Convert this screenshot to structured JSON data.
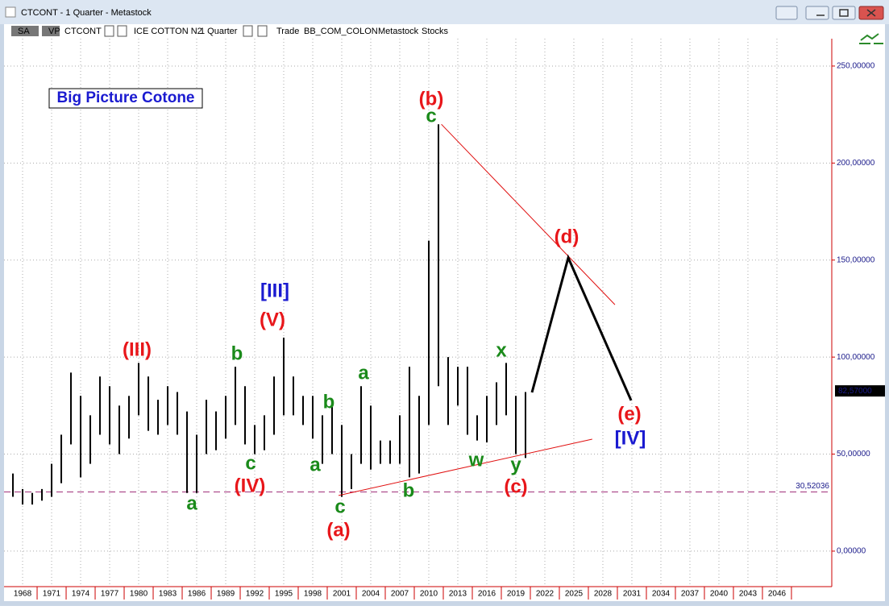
{
  "window": {
    "title": "CTCONT - 1 Quarter - Metastock",
    "toolbar": [
      "SA",
      "VP",
      "CTCONT",
      "ICE COTTON N2",
      "1 Quarter",
      "Trade",
      "BB_COM_COLON",
      "Metastock",
      "Stocks"
    ]
  },
  "chart_data": {
    "type": "range-bar",
    "x": [
      1967,
      1968,
      1969,
      1970,
      1971,
      1972,
      1973,
      1974,
      1975,
      1976,
      1977,
      1978,
      1979,
      1980,
      1981,
      1982,
      1983,
      1984,
      1985,
      1986,
      1987,
      1988,
      1989,
      1990,
      1991,
      1992,
      1993,
      1994,
      1995,
      1996,
      1997,
      1998,
      1999,
      2000,
      2001,
      2002,
      2003,
      2004,
      2005,
      2006,
      2007,
      2008,
      2009,
      2010,
      2011,
      2012,
      2013,
      2014,
      2015,
      2016,
      2017,
      2018,
      2019,
      2020
    ],
    "low": [
      28,
      24,
      24,
      26,
      28,
      35,
      55,
      38,
      45,
      60,
      55,
      50,
      58,
      70,
      62,
      60,
      65,
      60,
      30,
      30,
      50,
      52,
      58,
      65,
      55,
      50,
      52,
      60,
      70,
      70,
      65,
      58,
      45,
      50,
      28,
      32,
      45,
      42,
      45,
      45,
      45,
      38,
      40,
      65,
      85,
      65,
      75,
      60,
      57,
      56,
      65,
      70,
      50,
      48
    ],
    "high": [
      40,
      32,
      30,
      32,
      45,
      60,
      92,
      80,
      70,
      90,
      85,
      75,
      80,
      97,
      90,
      78,
      85,
      82,
      72,
      60,
      78,
      72,
      80,
      95,
      85,
      65,
      70,
      90,
      110,
      90,
      80,
      80,
      70,
      75,
      65,
      50,
      85,
      75,
      57,
      57,
      70,
      95,
      80,
      160,
      220,
      100,
      95,
      95,
      70,
      80,
      87,
      97,
      80,
      82
    ],
    "color": "#000000",
    "xlim": [
      1966.08,
      2051.67
    ],
    "xticks": [
      1968,
      1971,
      1974,
      1977,
      1980,
      1983,
      1986,
      1989,
      1992,
      1995,
      1998,
      2001,
      2004,
      2007,
      2010,
      2013,
      2016,
      2019,
      2022,
      2025,
      2028,
      2031,
      2034,
      2037,
      2040,
      2043,
      2046
    ],
    "ylim": [
      -18.3,
      264.1
    ],
    "yticks": [
      {
        "value": 0,
        "label": "0,00000"
      },
      {
        "value": 50,
        "label": "50,00000"
      },
      {
        "value": 100,
        "label": "100,00000"
      },
      {
        "value": 150,
        "label": "150,00000"
      },
      {
        "value": 200,
        "label": "200,00000"
      },
      {
        "value": 250,
        "label": "250,00000"
      }
    ],
    "grid": true,
    "hline": {
      "value": 30.52036,
      "label": "30,52036",
      "color": "#a0307a"
    },
    "last_price": {
      "value": 82.57,
      "label": "82,57000"
    },
    "lines": [
      {
        "color": "#e01010",
        "x": [
          2011.3,
          2029.25
        ],
        "y": [
          220,
          127
        ]
      },
      {
        "color": "#e01010",
        "x": [
          2000.67,
          2026.9
        ],
        "y": [
          28.7,
          57.7
        ]
      },
      {
        "color": "#000000",
        "x": [
          2020.67,
          2024.42,
          2030.92
        ],
        "y": [
          81.8,
          151.2,
          77.7
        ]
      }
    ],
    "title_box": {
      "text": "Big Picture Cotone",
      "color": "#1a1ad0"
    },
    "annotations": [
      {
        "text": "(b)",
        "color": "#e8161a"
      },
      {
        "text": "c",
        "color": "#1a8a1a"
      },
      {
        "text": "(d)",
        "color": "#e8161a"
      },
      {
        "text": "[III]",
        "color": "#1a1ad0"
      },
      {
        "text": "(V)",
        "color": "#e8161a"
      },
      {
        "text": "(III)",
        "color": "#e8161a"
      },
      {
        "text": "b",
        "color": "#1a8a1a"
      },
      {
        "text": "x",
        "color": "#1a8a1a"
      },
      {
        "text": "a",
        "color": "#1a8a1a"
      },
      {
        "text": "b",
        "color": "#1a8a1a"
      },
      {
        "text": "(e)",
        "color": "#e8161a"
      },
      {
        "text": "[IV]",
        "color": "#1a1ad0"
      },
      {
        "text": "c",
        "color": "#1a8a1a"
      },
      {
        "text": "a",
        "color": "#1a8a1a"
      },
      {
        "text": "w",
        "color": "#1a8a1a"
      },
      {
        "text": "y",
        "color": "#1a8a1a"
      },
      {
        "text": "(IV)",
        "color": "#e8161a"
      },
      {
        "text": "(c)",
        "color": "#e8161a"
      },
      {
        "text": "b",
        "color": "#1a8a1a"
      },
      {
        "text": "a",
        "color": "#1a8a1a"
      },
      {
        "text": "c",
        "color": "#1a8a1a"
      },
      {
        "text": "(a)",
        "color": "#e8161a"
      }
    ]
  }
}
